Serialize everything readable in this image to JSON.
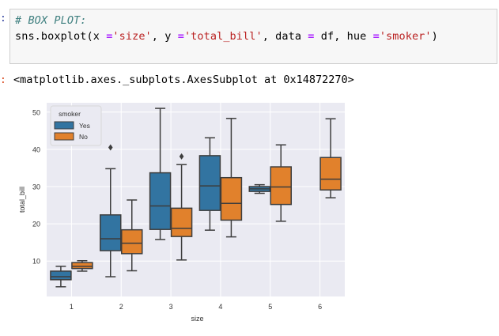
{
  "notebook": {
    "in_marker": ":",
    "out_marker": ":",
    "code_comment": "# BOX PLOT:",
    "code_tokens": [
      {
        "t": "sns.boxplot(x ",
        "c": "plain"
      },
      {
        "t": "=",
        "c": "op"
      },
      {
        "t": "'size'",
        "c": "str"
      },
      {
        "t": ", y ",
        "c": "plain"
      },
      {
        "t": "=",
        "c": "op"
      },
      {
        "t": "'total_bill'",
        "c": "str"
      },
      {
        "t": ", data ",
        "c": "plain"
      },
      {
        "t": "=",
        "c": "op"
      },
      {
        "t": " df, hue ",
        "c": "plain"
      },
      {
        "t": "=",
        "c": "op"
      },
      {
        "t": "'smoker'",
        "c": "str"
      },
      {
        "t": ")",
        "c": "plain"
      }
    ],
    "output_text": "<matplotlib.axes._subplots.AxesSubplot at 0x14872270>"
  },
  "chart_data": {
    "type": "box",
    "xlabel": "size",
    "ylabel": "total_bill",
    "categories": [
      "1",
      "2",
      "3",
      "4",
      "5",
      "6"
    ],
    "yticks": [
      10,
      20,
      30,
      40,
      50
    ],
    "ylim": [
      0.5,
      52.5
    ],
    "grid": true,
    "background": "#eaeaf2",
    "legend": {
      "title": "smoker",
      "placement": "top-left"
    },
    "series": [
      {
        "name": "Yes",
        "color": "#3274a1",
        "boxes": [
          {
            "category": "1",
            "whislo": 3.1,
            "q1": 5.0,
            "med": 5.8,
            "q3": 7.3,
            "whishi": 8.6,
            "fliers": []
          },
          {
            "category": "2",
            "whislo": 5.8,
            "q1": 12.8,
            "med": 16.0,
            "q3": 22.4,
            "whishi": 34.8,
            "fliers": [
              40.5
            ]
          },
          {
            "category": "3",
            "whislo": 15.8,
            "q1": 18.5,
            "med": 24.8,
            "q3": 33.7,
            "whishi": 51.0,
            "fliers": []
          },
          {
            "category": "4",
            "whislo": 18.3,
            "q1": 23.6,
            "med": 30.2,
            "q3": 38.3,
            "whishi": 43.1,
            "fliers": []
          },
          {
            "category": "5",
            "whislo": 28.2,
            "q1": 28.7,
            "med": 29.4,
            "q3": 30.0,
            "whishi": 30.5,
            "fliers": []
          }
        ]
      },
      {
        "name": "No",
        "color": "#e1812c",
        "boxes": [
          {
            "category": "1",
            "whislo": 7.3,
            "q1": 8.0,
            "med": 8.6,
            "q3": 9.6,
            "whishi": 10.1,
            "fliers": []
          },
          {
            "category": "2",
            "whislo": 7.4,
            "q1": 12.0,
            "med": 14.8,
            "q3": 18.4,
            "whishi": 26.4,
            "fliers": []
          },
          {
            "category": "3",
            "whislo": 10.3,
            "q1": 16.6,
            "med": 18.8,
            "q3": 24.2,
            "whishi": 35.9,
            "fliers": [
              38.1
            ]
          },
          {
            "category": "4",
            "whislo": 16.5,
            "q1": 21.0,
            "med": 25.5,
            "q3": 32.4,
            "whishi": 48.3,
            "fliers": []
          },
          {
            "category": "5",
            "whislo": 20.7,
            "q1": 25.2,
            "med": 29.9,
            "q3": 35.3,
            "whishi": 41.2,
            "fliers": []
          },
          {
            "category": "6",
            "whislo": 27.0,
            "q1": 29.1,
            "med": 32.0,
            "q3": 37.8,
            "whishi": 48.2,
            "fliers": []
          }
        ]
      }
    ]
  }
}
